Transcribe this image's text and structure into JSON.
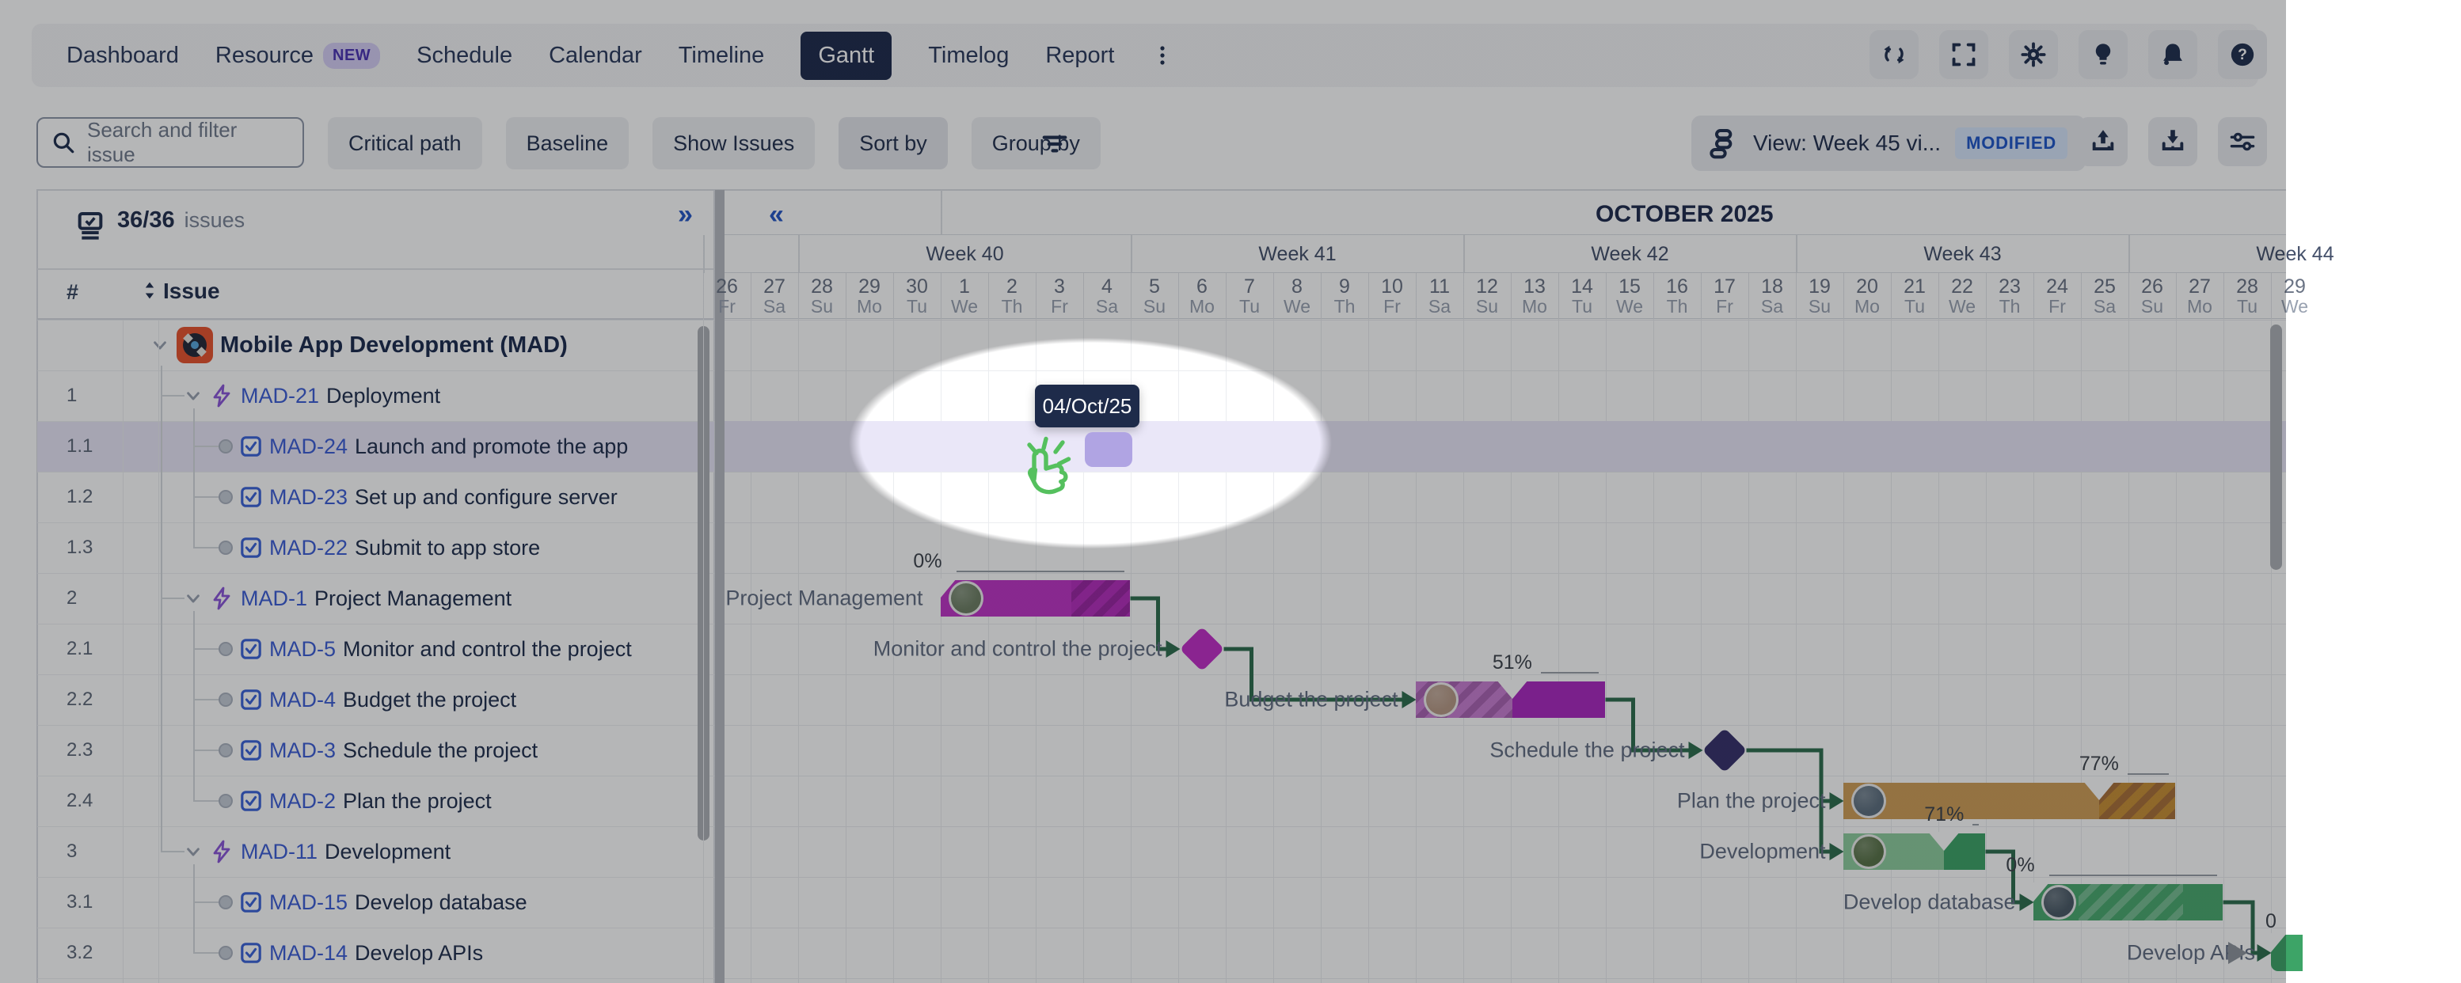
{
  "nav": {
    "items": [
      {
        "label": "Dashboard"
      },
      {
        "label": "Resource",
        "badge": "NEW"
      },
      {
        "label": "Schedule"
      },
      {
        "label": "Calendar"
      },
      {
        "label": "Timeline"
      },
      {
        "label": "Gantt",
        "selected": true
      },
      {
        "label": "Timelog"
      },
      {
        "label": "Report"
      },
      {
        "icon": "kebab"
      }
    ],
    "icon_buttons": [
      {
        "name": "sync-icon"
      },
      {
        "name": "fullscreen-icon"
      },
      {
        "name": "settings-gear-icon"
      },
      {
        "name": "lightbulb-icon"
      },
      {
        "name": "notifications-bell-icon"
      },
      {
        "name": "help-icon"
      }
    ]
  },
  "toolbar": {
    "search_placeholder": "Search and filter issue",
    "buttons": [
      "Critical path",
      "Baseline",
      "Show Issues",
      "Sort by",
      "Group by"
    ],
    "filter_icon": "filter-lines-icon",
    "view_label": "View: Week 45 vi...",
    "view_badge": "MODIFIED",
    "action_icons": [
      {
        "name": "upload-icon"
      },
      {
        "name": "download-icon"
      },
      {
        "name": "display-settings-icon"
      }
    ]
  },
  "left_panel": {
    "issues_count": "36/36",
    "issues_label": "issues",
    "collapse_icon": "»",
    "col_num": "#",
    "col_issue": "Issue",
    "rows": [
      {
        "num": "",
        "type": "project",
        "key": "",
        "title": "Mobile App Development  (MAD)"
      },
      {
        "num": "1",
        "type": "epic",
        "key": "MAD-21",
        "title": "Deployment"
      },
      {
        "num": "1.1",
        "type": "task",
        "key": "MAD-24",
        "title": "Launch and promote the app",
        "selected": true
      },
      {
        "num": "1.2",
        "type": "task",
        "key": "MAD-23",
        "title": "Set up and configure server"
      },
      {
        "num": "1.3",
        "type": "task",
        "key": "MAD-22",
        "title": "Submit to app store"
      },
      {
        "num": "2",
        "type": "epic",
        "key": "MAD-1",
        "title": "Project Management"
      },
      {
        "num": "2.1",
        "type": "task",
        "key": "MAD-5",
        "title": "Monitor and control the project"
      },
      {
        "num": "2.2",
        "type": "task",
        "key": "MAD-4",
        "title": "Budget the project"
      },
      {
        "num": "2.3",
        "type": "task",
        "key": "MAD-3",
        "title": "Schedule the project"
      },
      {
        "num": "2.4",
        "type": "task",
        "key": "MAD-2",
        "title": "Plan the project"
      },
      {
        "num": "3",
        "type": "epic",
        "key": "MAD-11",
        "title": "Development"
      },
      {
        "num": "3.1",
        "type": "task",
        "key": "MAD-15",
        "title": "Develop database"
      },
      {
        "num": "3.2",
        "type": "task",
        "key": "MAD-14",
        "title": "Develop APIs"
      }
    ]
  },
  "timeline": {
    "month": "OCTOBER 2025",
    "collapse_icon": "«",
    "weeks": [
      "",
      "Week 40",
      "Week 41",
      "Week 42",
      "Week 43",
      "Week 44"
    ],
    "days": [
      {
        "n": "26",
        "w": "Fr"
      },
      {
        "n": "27",
        "w": "Sa"
      },
      {
        "n": "28",
        "w": "Su"
      },
      {
        "n": "29",
        "w": "Mo"
      },
      {
        "n": "30",
        "w": "Tu"
      },
      {
        "n": "1",
        "w": "We"
      },
      {
        "n": "2",
        "w": "Th"
      },
      {
        "n": "3",
        "w": "Fr"
      },
      {
        "n": "4",
        "w": "Sa"
      },
      {
        "n": "5",
        "w": "Su"
      },
      {
        "n": "6",
        "w": "Mo"
      },
      {
        "n": "7",
        "w": "Tu"
      },
      {
        "n": "8",
        "w": "We"
      },
      {
        "n": "9",
        "w": "Th"
      },
      {
        "n": "10",
        "w": "Fr"
      },
      {
        "n": "11",
        "w": "Sa"
      },
      {
        "n": "12",
        "w": "Su"
      },
      {
        "n": "13",
        "w": "Mo"
      },
      {
        "n": "14",
        "w": "Tu"
      },
      {
        "n": "15",
        "w": "We"
      },
      {
        "n": "16",
        "w": "Th"
      },
      {
        "n": "17",
        "w": "Fr"
      },
      {
        "n": "18",
        "w": "Sa"
      },
      {
        "n": "19",
        "w": "Su"
      },
      {
        "n": "20",
        "w": "Mo"
      },
      {
        "n": "21",
        "w": "Tu"
      },
      {
        "n": "22",
        "w": "We"
      },
      {
        "n": "23",
        "w": "Th"
      },
      {
        "n": "24",
        "w": "Fr"
      },
      {
        "n": "25",
        "w": "Sa"
      },
      {
        "n": "26",
        "w": "Su"
      },
      {
        "n": "27",
        "w": "Mo"
      },
      {
        "n": "28",
        "w": "Tu"
      },
      {
        "n": "29",
        "w": "We"
      }
    ]
  },
  "gantt": {
    "bars": [
      {
        "key": "MAD-1",
        "label": "Project Management",
        "row": 5,
        "start": "Oct 1",
        "end": "Oct 4",
        "percent": 0,
        "avatar": "#6e7f64",
        "segments": [
          {
            "from": 0,
            "to": 0.69,
            "style": "solid",
            "color": "#bf35c6"
          },
          {
            "from": 0.69,
            "to": 1,
            "style": "stripes-dark",
            "color": "#b52fbd"
          }
        ]
      },
      {
        "key": "MAD-4",
        "label": "Budget the project",
        "row": 7,
        "start": "Oct 11",
        "end": "Oct 14",
        "percent": 51,
        "avatar": "#b79a86",
        "segments": [
          {
            "from": 0,
            "to": 0.51,
            "style": "stripes-dark",
            "color": "#c97fd2"
          },
          {
            "from": 0.51,
            "to": 1,
            "style": "solid",
            "color": "#ab29c0"
          }
        ]
      },
      {
        "key": "MAD-2",
        "label": "Plan the project",
        "row": 9,
        "start": "Oct 20",
        "end": "Oct 26",
        "percent": 77,
        "avatar": "#5d6f7e",
        "segments": [
          {
            "from": 0,
            "to": 0.77,
            "style": "solid",
            "color": "#cf9f58"
          },
          {
            "from": 0.77,
            "to": 1,
            "style": "stripes-dark",
            "color": "#c88f35"
          }
        ]
      },
      {
        "key": "MAD-11",
        "label": "Development",
        "row": 10,
        "start": "Oct 20",
        "end": "Oct 22",
        "percent": 71,
        "avatar": "#597348",
        "segments": [
          {
            "from": 0,
            "to": 0.71,
            "style": "solid",
            "color": "#8ecd9e"
          },
          {
            "from": 0.71,
            "to": 1,
            "style": "solid",
            "color": "#3da467"
          }
        ]
      },
      {
        "key": "MAD-15",
        "label": "Develop database",
        "row": 11,
        "start": "Oct 24",
        "end": "Oct 27",
        "percent": 0,
        "avatar": "#4a5a66",
        "segments": [
          {
            "from": 0,
            "to": 0.24,
            "style": "solid",
            "color": "#4aa96e"
          },
          {
            "from": 0.24,
            "to": 0.79,
            "style": "stripes-light",
            "color": "#4aa96e"
          },
          {
            "from": 0.79,
            "to": 1,
            "style": "solid",
            "color": "#4aa96e"
          }
        ]
      }
    ],
    "milestones": [
      {
        "key": "MAD-5",
        "label": "Monitor and control the project",
        "row": 6,
        "date": "Oct 6",
        "color": "#c12fc7"
      },
      {
        "key": "MAD-3",
        "label": "Schedule the project",
        "row": 8,
        "date": "Oct 17",
        "color": "#37316b"
      }
    ],
    "offscreen_task": {
      "key": "MAD-14",
      "label": "Develop APIs",
      "row": 12,
      "start": "Oct 29",
      "percent_label": "0"
    },
    "dependencies": [
      {
        "from": "MAD-1",
        "to": "MAD-5"
      },
      {
        "from": "MAD-5",
        "to": "MAD-4"
      },
      {
        "from": "MAD-4",
        "to": "MAD-3"
      },
      {
        "from": "MAD-3",
        "to": "MAD-2",
        "elbow": 2300
      },
      {
        "from": "MAD-3",
        "to": "MAD-11",
        "elbow": 2300,
        "shared": true
      },
      {
        "from": "MAD-11",
        "to": "MAD-15"
      },
      {
        "from": "MAD-15",
        "to": "MAD-14",
        "elbow": 2845
      }
    ]
  },
  "onboarding": {
    "tooltip_date": "04/Oct/25"
  },
  "colors": {
    "accent_blue": "#2456c6",
    "link_blue": "#3c5ed6",
    "selected_row": "#eae7f8",
    "connector_green": "#2e6e4e",
    "nav_selected": "#1f2b4d",
    "drag_square": "#b0a4e3"
  }
}
